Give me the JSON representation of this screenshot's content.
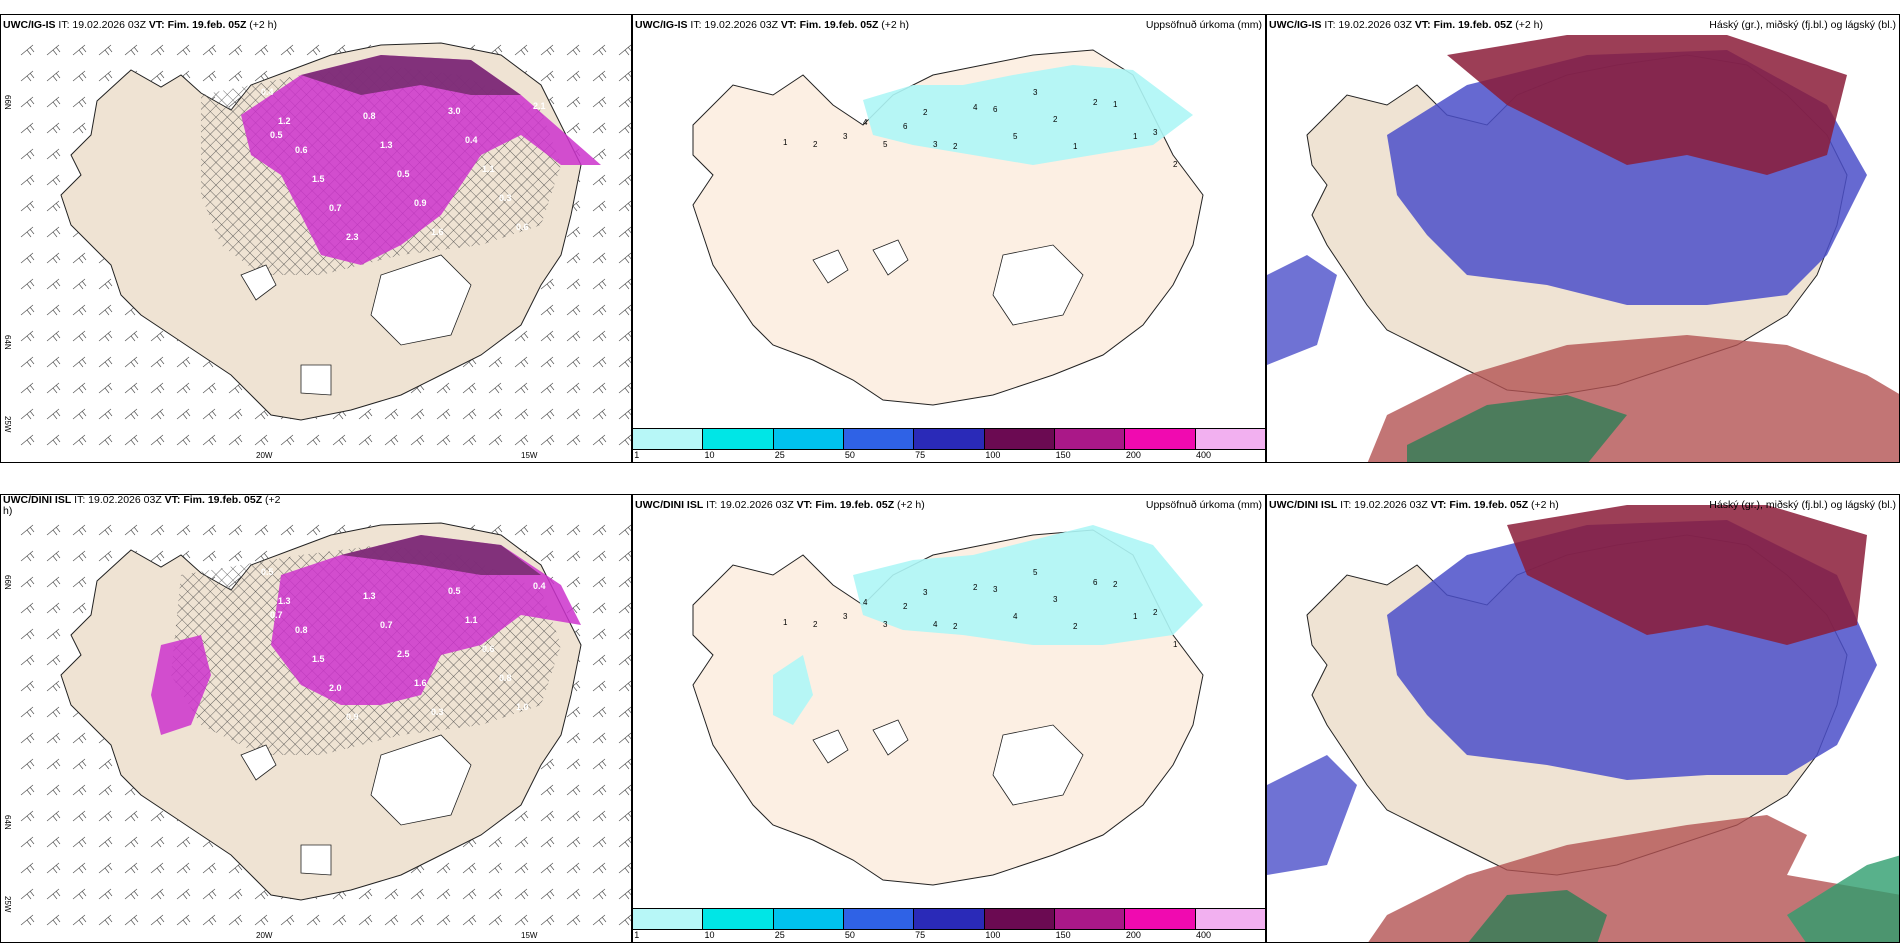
{
  "panels": [
    {
      "model": "UWC/IG-IS",
      "it": "IT: 19.02.2026 03Z",
      "vt_label": "VT:",
      "vt": "Fim. 19.feb. 05Z",
      "lead": "(+2 h)",
      "right": ""
    },
    {
      "model": "UWC/IG-IS",
      "it": "IT: 19.02.2026 03Z",
      "vt_label": "VT:",
      "vt": "Fim. 19.feb. 05Z",
      "lead": "(+2 h)",
      "right": "Uppsöfnuð úrkoma (mm)"
    },
    {
      "model": "UWC/IG-IS",
      "it": "IT: 19.02.2026 03Z",
      "vt_label": "VT:",
      "vt": "Fim. 19.feb. 05Z",
      "lead": "(+2 h)",
      "right": "Háský (gr.), miðský (fj.bl.) og lágský (bl.)"
    },
    {
      "model": "UWC/DINI ISL",
      "it": "IT: 19.02.2026 03Z",
      "vt_label": "VT:",
      "vt": "Fim. 19.feb. 05Z",
      "lead": "(+2 h)",
      "right": ""
    },
    {
      "model": "UWC/DINI ISL",
      "it": "IT: 19.02.2026 03Z",
      "vt_label": "VT:",
      "vt": "Fim. 19.feb. 05Z",
      "lead": "(+2 h)",
      "right": "Uppsöfnuð úrkoma (mm)"
    },
    {
      "model": "UWC/DINI ISL",
      "it": "IT: 19.02.2026 03Z",
      "vt_label": "VT:",
      "vt": "Fim. 19.feb. 05Z",
      "lead": "(+2 h)",
      "right": "Háský (gr.), miðský (fj.bl.) og lágský (bl.)"
    }
  ],
  "colorbar": {
    "labels": [
      "1",
      "10",
      "25",
      "50",
      "75",
      "100",
      "150",
      "200",
      "400"
    ],
    "colors": [
      "#b7f7f7",
      "#00e6e6",
      "#00c2ee",
      "#2f62e6",
      "#2a2ab8",
      "#6b0a52",
      "#aa1888",
      "#f00ab0",
      "#f2b0f0"
    ]
  },
  "axes": {
    "lat66": "66N",
    "lat64": "64N",
    "lon20": "20W",
    "lon15": "15W",
    "lon25": "25W"
  },
  "colors": {
    "land": "#efe3d3",
    "land_precip": "#fcefe3",
    "precip_magenta": "#cc33cc",
    "precip_dark": "#6e2a66",
    "cyan": "#aef6f6",
    "cloud_high": "#8b1c38",
    "cloud_mid": "#4b4fc9",
    "cloud_low": "#2e7e56"
  },
  "precip_labels_top": [
    "1",
    "2",
    "3",
    "4",
    "5",
    "6",
    "2",
    "3",
    "2",
    "4",
    "6",
    "5",
    "3",
    "2",
    "1",
    "2",
    "1",
    "1",
    "3",
    "2"
  ],
  "precip_labels_bottom": [
    "1",
    "2",
    "3",
    "4",
    "3",
    "2",
    "3",
    "4",
    "2",
    "2",
    "3",
    "4",
    "5",
    "3",
    "2",
    "6",
    "2",
    "1",
    "2",
    "1"
  ],
  "field_labels_top": [
    "0.4",
    "1.2",
    "0.6",
    "1.5",
    "0.7",
    "2.3",
    "0.8",
    "1.3",
    "0.5",
    "0.9",
    "1.6",
    "3.0",
    "0.4",
    "1.1",
    "0.3",
    "0.6",
    "2.1",
    "0.5"
  ],
  "field_labels_bottom": [
    "0.5",
    "1.3",
    "0.8",
    "1.5",
    "2.0",
    "0.9",
    "1.3",
    "0.7",
    "2.5",
    "1.6",
    "0.3",
    "0.5",
    "1.1",
    "0.6",
    "0.8",
    "1.0",
    "0.4",
    "0.7"
  ]
}
